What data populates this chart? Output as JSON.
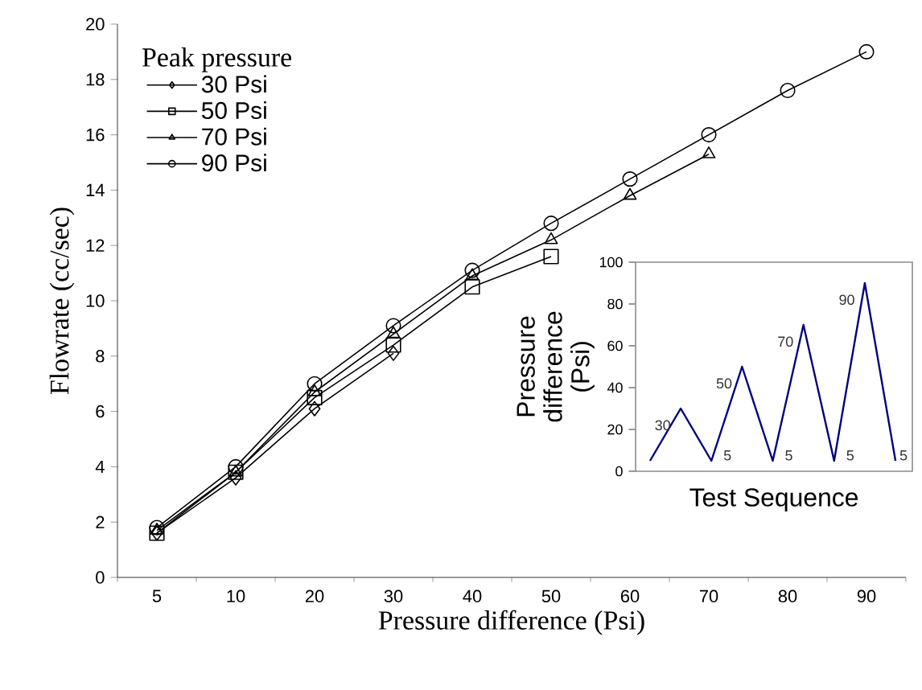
{
  "chart_data": [
    {
      "type": "line",
      "xlabel": "Pressure difference (Psi)",
      "ylabel": "Flowrate (cc/sec)",
      "legend_title": "Peak pressure",
      "legend": "top left",
      "categories": [
        "5",
        "10",
        "20",
        "30",
        "40",
        "50",
        "60",
        "70",
        "80",
        "90"
      ],
      "ylim": [
        0,
        20
      ],
      "yticks": [
        0,
        2,
        4,
        6,
        8,
        10,
        12,
        14,
        16,
        18,
        20
      ],
      "series": [
        {
          "name": "30 Psi",
          "color": "#000000",
          "marker": "diamond",
          "values": [
            1.6,
            3.6,
            6.1,
            8.1,
            null,
            null,
            null,
            null,
            null,
            null
          ]
        },
        {
          "name": "50 Psi",
          "color": "#000000",
          "marker": "square",
          "values": [
            1.6,
            3.8,
            6.5,
            8.4,
            10.5,
            11.6,
            null,
            null,
            null,
            null
          ]
        },
        {
          "name": "70 Psi",
          "color": "#000000",
          "marker": "triangle",
          "values": [
            1.7,
            3.8,
            6.7,
            8.8,
            10.9,
            12.2,
            13.8,
            15.3,
            null,
            null
          ]
        },
        {
          "name": "90 Psi",
          "color": "#000000",
          "marker": "circle",
          "values": [
            1.8,
            4.0,
            7.0,
            9.1,
            11.1,
            12.8,
            14.4,
            16.0,
            17.6,
            19.0
          ]
        }
      ]
    },
    {
      "type": "line",
      "xlabel": "Test Sequence",
      "ylabel": "Pressure difference (Psi)",
      "categories": [
        null,
        null,
        null,
        null,
        null,
        null,
        null,
        null,
        null
      ],
      "ylim": [
        0,
        100
      ],
      "yticks": [
        0,
        20,
        40,
        60,
        80,
        100
      ],
      "series": [
        {
          "color": "#000080",
          "values": [
            5,
            30,
            5,
            50,
            5,
            70,
            5,
            90,
            5
          ],
          "value_labels": [
            null,
            "30",
            "5",
            "50",
            "5",
            "70",
            "5",
            "90",
            "5"
          ]
        }
      ]
    }
  ]
}
